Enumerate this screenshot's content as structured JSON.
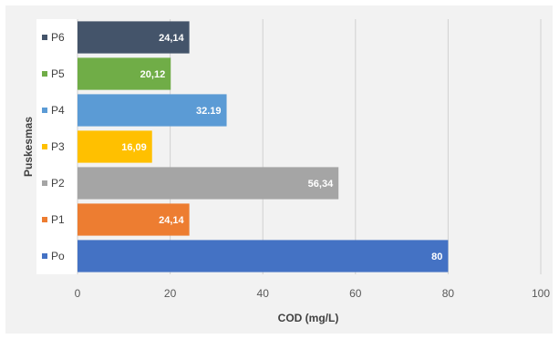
{
  "chart_data": {
    "type": "bar",
    "orientation": "horizontal",
    "categories": [
      "P6",
      "P5",
      "P4",
      "P3",
      "P2",
      "P1",
      "Po"
    ],
    "values": [
      24.14,
      20.12,
      32.19,
      16.09,
      56.34,
      24.14,
      80
    ],
    "data_labels": [
      "24,14",
      "20,12",
      "32.19",
      "16,09",
      "56,34",
      "24,14",
      "80"
    ],
    "colors": [
      "#44546a",
      "#70ad47",
      "#5b9bd5",
      "#ffc000",
      "#a5a5a5",
      "#ed7d31",
      "#4472c4"
    ],
    "xlabel": "COD (mg/L)",
    "ylabel": "Puskesmas",
    "xlim": [
      0,
      100
    ],
    "xticks": [
      0,
      20,
      40,
      60,
      80,
      100
    ],
    "grid": true,
    "legend": "left, inline with category labels"
  }
}
